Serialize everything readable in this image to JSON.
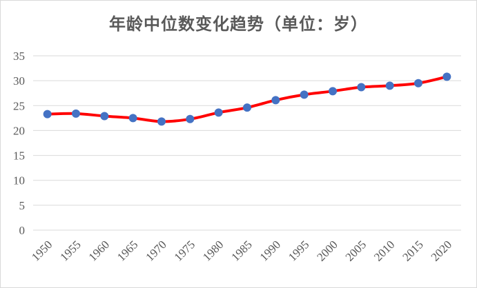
{
  "colors": {
    "line": "#ff0000",
    "marker": "#4472c4",
    "grid": "#d9d9d9",
    "text": "#595959"
  },
  "chart_data": {
    "type": "line",
    "title": "年龄中位数变化趋势（单位：岁）",
    "xlabel": "",
    "ylabel": "",
    "x": [
      "1950",
      "1955",
      "1960",
      "1965",
      "1970",
      "1975",
      "1980",
      "1985",
      "1990",
      "1995",
      "2000",
      "2005",
      "2010",
      "2015",
      "2020"
    ],
    "series": [
      {
        "values": [
          23.3,
          23.4,
          22.9,
          22.5,
          21.8,
          22.3,
          23.6,
          24.6,
          26.1,
          27.2,
          27.9,
          28.7,
          29.0,
          29.5,
          30.8
        ]
      }
    ],
    "ylim": [
      0,
      35
    ],
    "yticks": [
      "0",
      "5",
      "10",
      "15",
      "20",
      "25",
      "30",
      "35"
    ],
    "grid": true,
    "legend": "none",
    "smooth": true,
    "markers": true
  }
}
